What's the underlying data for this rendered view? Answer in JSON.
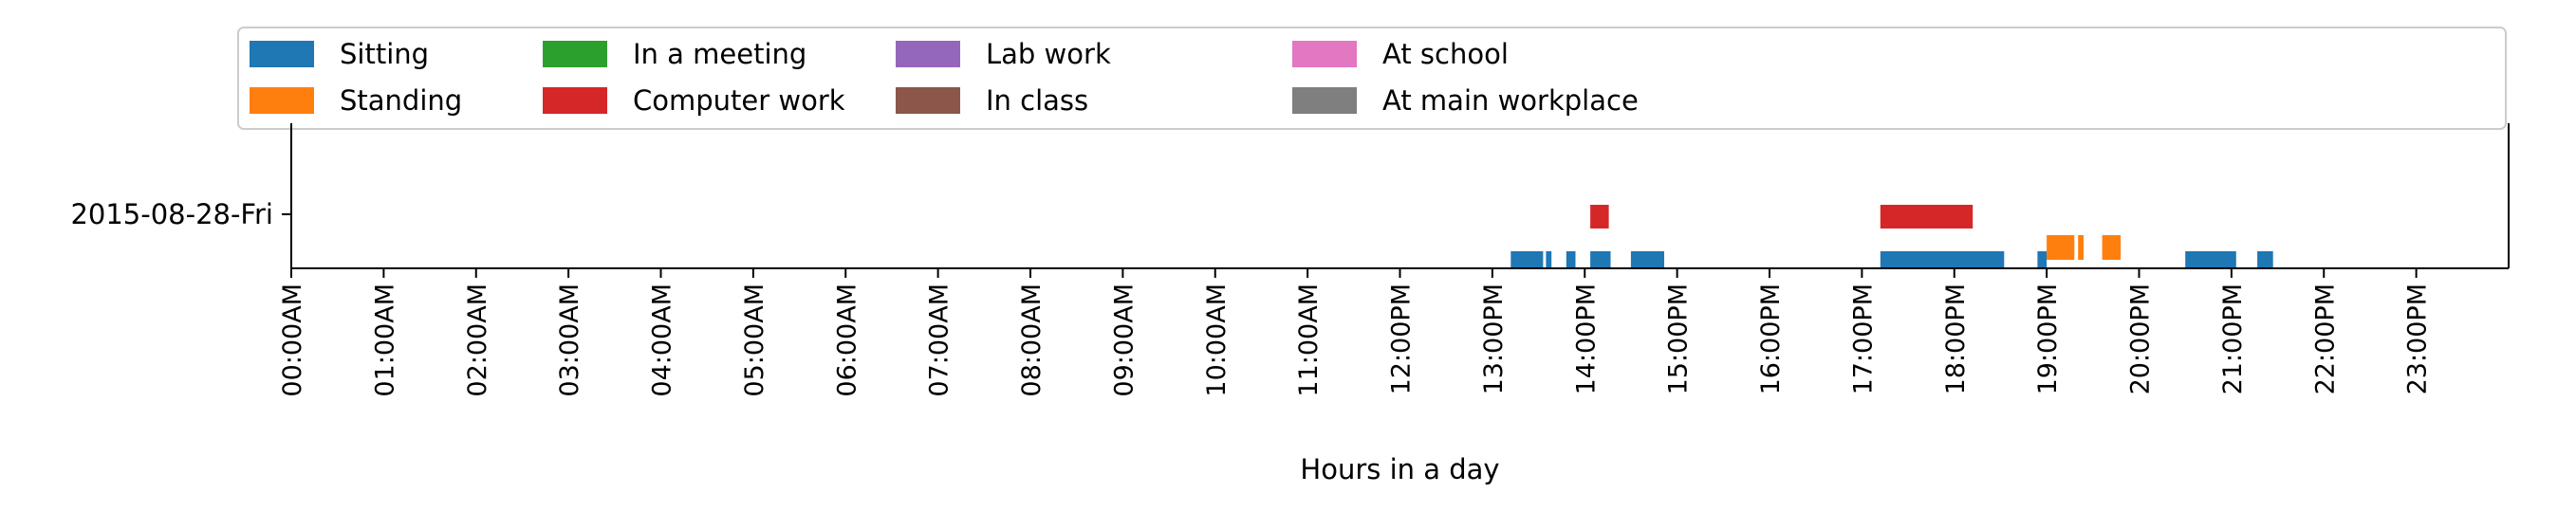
{
  "chart_data": {
    "type": "timeline",
    "xlabel": "Hours in a day",
    "xlim": [
      0,
      24
    ],
    "x_ticks": [
      "00:00AM",
      "01:00AM",
      "02:00AM",
      "03:00AM",
      "04:00AM",
      "05:00AM",
      "06:00AM",
      "07:00AM",
      "08:00AM",
      "09:00AM",
      "10:00AM",
      "11:00AM",
      "12:00PM",
      "13:00PM",
      "14:00PM",
      "15:00PM",
      "16:00PM",
      "17:00PM",
      "18:00PM",
      "19:00PM",
      "20:00PM",
      "21:00PM",
      "22:00PM",
      "23:00PM"
    ],
    "y_ticks": [
      "2015-08-28-Fri"
    ],
    "legend": {
      "placement": "top",
      "columns": 7
    },
    "categories": [
      {
        "name": "Sitting",
        "color": "#1f77b4"
      },
      {
        "name": "Standing",
        "color": "#ff7f0e"
      },
      {
        "name": "In a meeting",
        "color": "#2ca02c"
      },
      {
        "name": "Computer work",
        "color": "#d62728"
      },
      {
        "name": "Lab work",
        "color": "#9467bd"
      },
      {
        "name": "In class",
        "color": "#8c564b"
      },
      {
        "name": "At school",
        "color": "#e377c2"
      },
      {
        "name": "At main workplace",
        "color": "#7f7f7f"
      }
    ],
    "series": [
      {
        "name": "Sitting",
        "day": "2015-08-28-Fri",
        "intervals": [
          [
            13.2,
            13.55
          ],
          [
            13.58,
            13.64
          ],
          [
            13.8,
            13.9
          ],
          [
            14.06,
            14.28
          ],
          [
            14.5,
            14.86
          ],
          [
            17.2,
            18.54
          ],
          [
            18.9,
            19.0
          ],
          [
            20.5,
            21.05
          ],
          [
            21.28,
            21.45
          ]
        ]
      },
      {
        "name": "Standing",
        "day": "2015-08-28-Fri",
        "intervals": [
          [
            19.0,
            19.3
          ],
          [
            19.34,
            19.4
          ],
          [
            19.6,
            19.8
          ]
        ]
      },
      {
        "name": "Computer work",
        "day": "2015-08-28-Fri",
        "intervals": [
          [
            14.06,
            14.26
          ],
          [
            17.2,
            18.2
          ]
        ]
      }
    ]
  }
}
